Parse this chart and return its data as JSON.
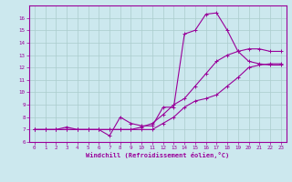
{
  "xlabel": "Windchill (Refroidissement éolien,°C)",
  "ylabel": "",
  "bg_color": "#cce8ee",
  "line_color": "#990099",
  "grid_color": "#aacccc",
  "xlim": [
    -0.5,
    23.5
  ],
  "ylim": [
    6,
    17
  ],
  "yticks": [
    6,
    7,
    8,
    9,
    10,
    11,
    12,
    13,
    14,
    15,
    16
  ],
  "xticks": [
    0,
    1,
    2,
    3,
    4,
    5,
    6,
    7,
    8,
    9,
    10,
    11,
    12,
    13,
    14,
    15,
    16,
    17,
    18,
    19,
    20,
    21,
    22,
    23
  ],
  "line1_x": [
    0,
    1,
    2,
    3,
    4,
    5,
    6,
    7,
    8,
    9,
    10,
    11,
    12,
    13,
    14,
    15,
    16,
    17,
    18,
    19,
    20,
    21,
    22,
    23
  ],
  "line1_y": [
    7.0,
    7.0,
    7.0,
    7.0,
    7.0,
    7.0,
    7.0,
    7.0,
    7.0,
    7.0,
    7.2,
    7.5,
    8.2,
    9.0,
    9.5,
    10.5,
    11.5,
    12.5,
    13.0,
    13.3,
    13.5,
    13.5,
    13.3,
    13.3
  ],
  "line2_x": [
    0,
    1,
    2,
    3,
    4,
    5,
    6,
    7,
    8,
    9,
    10,
    11,
    12,
    13,
    14,
    15,
    16,
    17,
    18,
    19,
    20,
    21,
    22,
    23
  ],
  "line2_y": [
    7.0,
    7.0,
    7.0,
    7.0,
    7.0,
    7.0,
    7.0,
    7.0,
    7.0,
    7.0,
    7.0,
    7.0,
    7.5,
    8.0,
    8.8,
    9.3,
    9.5,
    9.8,
    10.5,
    11.2,
    12.0,
    12.2,
    12.3,
    12.3
  ],
  "line3_x": [
    0,
    1,
    2,
    3,
    4,
    5,
    6,
    7,
    8,
    9,
    10,
    11,
    12,
    13,
    14,
    15,
    16,
    17,
    18,
    19,
    20,
    21,
    22,
    23
  ],
  "line3_y": [
    7.0,
    7.0,
    7.0,
    7.2,
    7.0,
    7.0,
    7.0,
    6.5,
    8.0,
    7.5,
    7.3,
    7.3,
    8.8,
    8.8,
    14.7,
    15.0,
    16.3,
    16.4,
    15.0,
    13.3,
    12.5,
    12.3,
    12.2,
    12.2
  ],
  "marker_size": 3,
  "line_width": 0.8,
  "tick_fontsize": 4.2,
  "xlabel_fontsize": 5.0
}
